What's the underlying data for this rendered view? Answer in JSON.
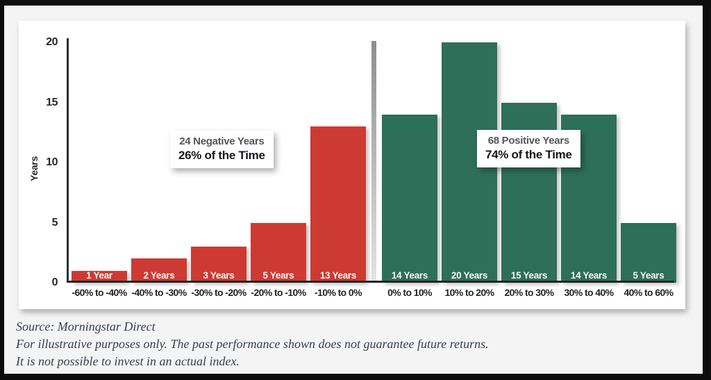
{
  "chart_data": {
    "type": "bar",
    "title": "",
    "ylabel": "Years",
    "yticks": [
      0,
      5,
      10,
      15,
      20
    ],
    "ylim": [
      0,
      20
    ],
    "grid": false,
    "legend": false,
    "categories": [
      "-60% to -40%",
      "-40% to -30%",
      "-30% to -20%",
      "-20% to -10%",
      "-10% to 0%",
      "0% to 10%",
      "10% to 20%",
      "20% to 30%",
      "30% to 40%",
      "40% to 60%"
    ],
    "values": [
      1,
      2,
      3,
      5,
      13,
      14,
      20,
      15,
      14,
      5
    ],
    "bar_labels": [
      "1 Year",
      "2 Years",
      "3 Years",
      "5 Years",
      "13 Years",
      "14 Years",
      "20 Years",
      "15 Years",
      "14 Years",
      "5 Years"
    ],
    "groups": [
      "negative",
      "negative",
      "negative",
      "negative",
      "negative",
      "positive",
      "positive",
      "positive",
      "positive",
      "positive"
    ]
  },
  "annotations": {
    "negative": {
      "line1": "24 Negative Years",
      "line2": "26% of the Time"
    },
    "positive": {
      "line1": "68 Positive Years",
      "line2": "74% of the Time"
    }
  },
  "footer": {
    "line1": "Source: Morningstar Direct",
    "line2": "For illustrative purposes only. The past performance shown does not guarantee future returns.",
    "line3": "It is not possible to invest in an actual index."
  },
  "colors": {
    "negative": "#cd3a33",
    "positive": "#2e6f59",
    "axis": "#2e2f31",
    "background": "#f4f4f4",
    "panel": "#ffffff",
    "frame": "#0d0d0d"
  }
}
